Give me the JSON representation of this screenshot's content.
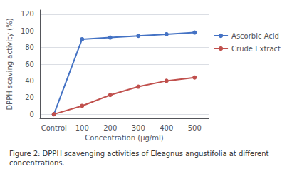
{
  "chart_data": {
    "type": "line",
    "title": "Figure 2: DPPH scavenging activities of Eleagnus angustifolia at different concentrations.",
    "x_label": "Concentration (μg/ml)",
    "y_label": "DPPH scaving activity (%)",
    "categories": [
      "Control",
      "100",
      "200",
      "300",
      "400",
      "500"
    ],
    "series": [
      {
        "name": "Ascorbic Acid",
        "color": "#4472C4",
        "values": [
          0,
          90,
          92,
          94,
          96,
          98
        ]
      },
      {
        "name": "Crude Extract",
        "color": "#C0504D",
        "values": [
          0,
          10,
          23,
          33,
          40,
          44
        ]
      }
    ],
    "ylim": [
      -5,
      125
    ],
    "yticks": [
      0,
      20,
      40,
      60,
      80,
      100,
      120
    ],
    "grid": true,
    "legend": "right",
    "marker": "circle",
    "line_style": "solid"
  }
}
